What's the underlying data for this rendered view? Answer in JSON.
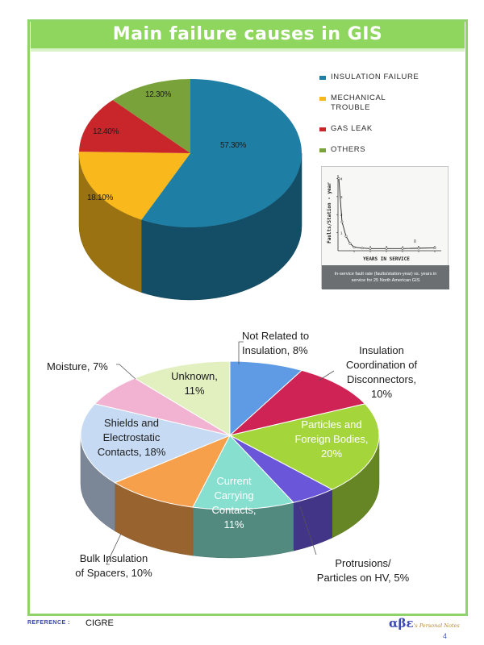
{
  "slide": {
    "title": "Main failure causes in GIS",
    "reference_label": "REFERENCE :",
    "reference_value": "CIGRE",
    "brand_symbol": "αβε",
    "brand_text": "'s Personal Notes",
    "page_number": "4"
  },
  "chart_data": [
    {
      "type": "pie",
      "title": "",
      "labels": [
        "INSULATION FAILURE",
        "MECHANICAL TROUBLE",
        "GAS LEAK",
        "OTHERS"
      ],
      "values": [
        57.3,
        18.1,
        12.4,
        12.3
      ],
      "value_labels": [
        "57.30%",
        "18.10%",
        "12.40%",
        "12.30%"
      ],
      "colors": [
        "#1f7ea4",
        "#f9b81b",
        "#c9262b",
        "#7aa23a"
      ],
      "legend": "right",
      "style": "3d"
    },
    {
      "type": "line",
      "title": "",
      "xlabel": "YEARS IN SERVICE",
      "ylabel": "Faults/Station - year",
      "caption": "In-service fault rate (faults/station-year) vs. years in service for 25 North American GIS",
      "x_ticks": [
        "1",
        "2",
        "3",
        "4",
        "5",
        "6"
      ],
      "y_ticks": [
        "1",
        "2",
        "3",
        "4"
      ],
      "xlim": [
        0,
        6.4
      ],
      "ylim": [
        0,
        4.2
      ],
      "x": [
        0.05,
        0.25,
        0.5,
        0.75,
        1.0,
        1.5,
        2.0,
        3.0,
        4.0,
        5.0,
        6.0
      ],
      "y": [
        4.0,
        1.6,
        0.8,
        0.4,
        0.2,
        0.15,
        0.12,
        0.12,
        0.12,
        0.14,
        0.16
      ],
      "annotations": [
        "0"
      ]
    },
    {
      "type": "pie",
      "title": "",
      "labels": [
        "Not Related to Insulation, 8%",
        "Insulation Coordination of Disconnectors, 10%",
        "Particles and Foreign Bodies, 20%",
        "Protrusions/ Particles on HV, 5%",
        "Current Carrying Contacts, 11%",
        "Bulk Insulation of Spacers, 10%",
        "Shields and Electrostatic Contacts, 18%",
        "Moisture, 7%",
        "Unknown, 11%"
      ],
      "label_lines": [
        [
          "Not Related to",
          "Insulation, 8%"
        ],
        [
          "Insulation",
          "Coordination of",
          "Disconnectors,",
          "10%"
        ],
        [
          "Particles and",
          "Foreign Bodies,",
          "20%"
        ],
        [
          "Protrusions/",
          "Particles on HV, 5%"
        ],
        [
          "Current",
          "Carrying",
          "Contacts, 11%"
        ],
        [
          "Bulk Insulation",
          "of Spacers, 10%"
        ],
        [
          "Shields and",
          "Electrostatic",
          "Contacts, 18%"
        ],
        [
          "Moisture, 7%"
        ],
        [
          "Unknown,",
          "11%"
        ]
      ],
      "values": [
        8,
        10,
        20,
        5,
        11,
        10,
        18,
        7,
        11
      ],
      "colors": [
        "#5f9be4",
        "#cf2356",
        "#a4d63b",
        "#6a56d9",
        "#86dfcf",
        "#f6a04b",
        "#c6daf3",
        "#f1b3d1",
        "#e2f0c0"
      ],
      "style": "3d"
    }
  ]
}
